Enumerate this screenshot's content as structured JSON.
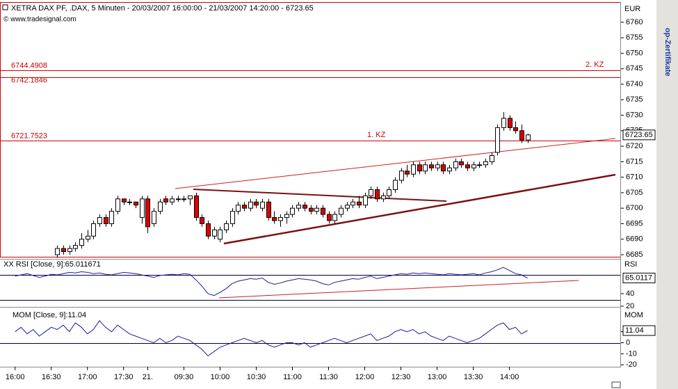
{
  "chart_data": [
    {
      "type": "candlestick",
      "title": "XETRA DAX PF, .DAX, 5 Minuten - 20/03/2007 16:00:00 - 21/03/2007 14:20:00 - 6723.65",
      "subtitle": "© www.tradesignal.com",
      "y_label": "EUR",
      "side_text": "op-Zertifikate",
      "x": [
        7,
        8,
        9,
        10,
        11,
        12,
        13,
        14,
        15,
        16,
        17,
        18,
        19,
        20,
        21,
        22,
        23,
        24,
        25,
        26,
        27,
        28,
        29,
        30,
        31,
        32,
        33,
        34,
        35,
        36,
        37,
        38,
        39,
        40,
        41,
        42,
        43,
        44,
        45,
        46,
        47,
        48,
        49,
        50,
        51,
        52,
        53,
        54,
        55,
        56,
        57,
        58,
        59,
        60,
        61,
        62,
        63,
        64,
        65,
        66,
        67,
        68,
        69,
        70,
        71,
        72,
        73,
        74,
        75,
        76,
        77,
        78,
        79,
        80,
        81,
        82,
        83,
        84,
        85
      ],
      "open": [
        6685,
        6687,
        6686,
        6687,
        6688,
        6690,
        6691,
        6695,
        6697,
        6695,
        6699,
        6703,
        6702,
        6702,
        6697,
        6703,
        6695,
        6699,
        6703,
        6702,
        6703,
        6703,
        6703,
        6704,
        6697,
        6695,
        6691,
        6690,
        6693,
        6695,
        6699,
        6701,
        6700,
        6702,
        6700,
        6702,
        6697,
        6696,
        6697,
        6698,
        6700,
        6701,
        6700,
        6699,
        6700,
        6698,
        6696,
        6698,
        6700,
        6701,
        6702,
        6701,
        6704,
        6706,
        6703,
        6704,
        6706,
        6709,
        6712,
        6711,
        6714,
        6712,
        6714,
        6713,
        6714,
        6712,
        6713,
        6715,
        6714,
        6713,
        6714,
        6714,
        6715,
        6718,
        6726,
        6729,
        6726,
        6725,
        6722
      ],
      "high": [
        6688,
        6688,
        6688,
        6689,
        6692,
        6693,
        6696,
        6698,
        6698,
        6700,
        6704,
        6703,
        6703,
        6702,
        6704,
        6704,
        6700,
        6703,
        6704,
        6704,
        6704,
        6704,
        6704,
        6705,
        6698,
        6696,
        6694,
        6694,
        6696,
        6700,
        6702,
        6702,
        6703,
        6703,
        6703,
        6703,
        6699,
        6698,
        6699,
        6701,
        6702,
        6702,
        6701,
        6701,
        6701,
        6699,
        6699,
        6701,
        6702,
        6703,
        6704,
        6705,
        6707,
        6707,
        6705,
        6707,
        6710,
        6713,
        6714,
        6715,
        6715,
        6715,
        6715,
        6715,
        6715,
        6714,
        6716,
        6716,
        6715,
        6715,
        6715,
        6716,
        6718,
        6727,
        6731,
        6730,
        6728,
        6727,
        6724
      ],
      "low": [
        6684,
        6685,
        6685,
        6686,
        6687,
        6689,
        6690,
        6694,
        6694,
        6694,
        6698,
        6701,
        6701,
        6700,
        6695,
        6692,
        6694,
        6698,
        6701,
        6701,
        6702,
        6702,
        6701,
        6696,
        6694,
        6690,
        6690,
        6689,
        6692,
        6694,
        6698,
        6699,
        6699,
        6700,
        6699,
        6696,
        6695,
        6694,
        6695,
        6697,
        6699,
        6699,
        6698,
        6698,
        6697,
        6695,
        6695,
        6697,
        6699,
        6700,
        6700,
        6700,
        6703,
        6702,
        6702,
        6703,
        6705,
        6708,
        6710,
        6710,
        6711,
        6711,
        6712,
        6712,
        6711,
        6711,
        6712,
        6713,
        6712,
        6712,
        6713,
        6713,
        6714,
        6717,
        6725,
        6725,
        6724,
        6721,
        6721
      ],
      "close": [
        6687,
        6686,
        6687,
        6688,
        6690,
        6691,
        6695,
        6697,
        6695,
        6699,
        6703,
        6702,
        6702,
        6701,
        6703,
        6694,
        6699,
        6702,
        6702,
        6703,
        6703,
        6703,
        6704,
        6697,
        6695,
        6691,
        6693,
        6693,
        6695,
        6699,
        6701,
        6700,
        6702,
        6701,
        6702,
        6697,
        6696,
        6697,
        6698,
        6700,
        6701,
        6700,
        6699,
        6700,
        6698,
        6696,
        6698,
        6700,
        6701,
        6702,
        6701,
        6704,
        6706,
        6703,
        6704,
        6706,
        6709,
        6712,
        6711,
        6714,
        6712,
        6714,
        6713,
        6714,
        6712,
        6713,
        6715,
        6714,
        6713,
        6714,
        6714,
        6715,
        6717,
        6726,
        6729,
        6726,
        6725,
        6722,
        6723.65
      ],
      "up_color": "#ffffff",
      "down_color": "#dd0000",
      "outline_color": "#000000",
      "ylim": [
        6684.1,
        6766.5
      ],
      "yticks": [
        6685,
        6690,
        6695,
        6700,
        6705,
        6710,
        6715,
        6720,
        6725,
        6730,
        6735,
        6740,
        6745,
        6750,
        6755,
        6760
      ],
      "xlim": [
        -2.5,
        100.5
      ],
      "xticks": [
        {
          "value": 0,
          "label": "16:00"
        },
        {
          "value": 6,
          "label": "16:30"
        },
        {
          "value": 12,
          "label": "17:00"
        },
        {
          "value": 18,
          "label": "17:30"
        },
        {
          "value": 22,
          "label": "21."
        },
        {
          "value": 28,
          "label": "09:30"
        },
        {
          "value": 34,
          "label": "10:00"
        },
        {
          "value": 40,
          "label": "10:30"
        },
        {
          "value": 46,
          "label": "11:00"
        },
        {
          "value": 52,
          "label": "11:30"
        },
        {
          "value": 58,
          "label": "12:00"
        },
        {
          "value": 64,
          "label": "12:30"
        },
        {
          "value": 70,
          "label": "13:00"
        },
        {
          "value": 76,
          "label": "13:30"
        },
        {
          "value": 82,
          "label": "14:00"
        }
      ],
      "levels": [
        6744.4908,
        6742.1846,
        6721.7523
      ],
      "level_color": "#cc0000",
      "annotations": [
        "1. KZ",
        "2. KZ"
      ]
    },
    {
      "type": "line",
      "title": "XX RSI [Close, 9]:65.011671",
      "y_label": "RSI",
      "color": "#1a1aa0",
      "x": [
        0,
        1,
        2,
        3,
        4,
        5,
        6,
        7,
        8,
        9,
        10,
        11,
        12,
        13,
        14,
        15,
        16,
        17,
        18,
        19,
        20,
        21,
        22,
        23,
        24,
        25,
        26,
        27,
        28,
        29,
        30,
        31,
        32,
        33,
        34,
        35,
        36,
        37,
        38,
        39,
        40,
        41,
        42,
        43,
        44,
        45,
        46,
        47,
        48,
        49,
        50,
        51,
        52,
        53,
        54,
        55,
        56,
        57,
        58,
        59,
        60,
        61,
        62,
        63,
        64,
        65,
        66,
        67,
        68,
        69,
        70,
        71,
        72,
        73,
        74,
        75,
        76,
        77,
        78,
        79,
        80,
        81,
        82,
        83,
        84,
        85
      ],
      "values": [
        68,
        70,
        72,
        69,
        66,
        68,
        71,
        70,
        72,
        74,
        73,
        75,
        74,
        72,
        73,
        71,
        70,
        72,
        74,
        73,
        72,
        70,
        68,
        66,
        69,
        70,
        71,
        70,
        72,
        71,
        62,
        52,
        40,
        37,
        42,
        48,
        56,
        60,
        62,
        64,
        63,
        65,
        58,
        55,
        57,
        60,
        62,
        64,
        63,
        62,
        60,
        56,
        54,
        58,
        60,
        62,
        64,
        63,
        66,
        68,
        64,
        66,
        68,
        70,
        72,
        71,
        73,
        72,
        73,
        72,
        71,
        70,
        72,
        71,
        70,
        71,
        72,
        70,
        73,
        75,
        78,
        82,
        77,
        72,
        70,
        65.011671
      ],
      "value_labels": [
        null,
        null,
        null,
        null,
        null,
        null,
        null,
        null,
        null,
        null,
        null,
        null,
        null,
        null,
        null,
        null,
        null,
        null,
        null,
        null,
        null,
        null,
        null,
        null,
        null,
        null,
        null,
        null,
        null,
        null,
        null,
        null,
        null,
        null,
        null,
        null,
        null,
        null,
        null,
        null,
        null,
        null,
        null,
        null,
        null,
        null,
        null,
        null,
        null,
        null,
        null,
        null,
        null,
        null,
        null,
        null,
        null,
        null,
        null,
        null,
        null,
        null,
        null,
        null,
        null,
        null,
        null,
        null,
        null,
        null,
        null,
        null,
        null,
        null,
        null,
        null,
        null,
        null,
        null,
        null,
        null,
        null,
        null,
        null,
        null,
        "65.0117"
      ],
      "ylim": [
        23.3,
        94.4
      ],
      "yticks": [
        40,
        20
      ],
      "levels": [
        70,
        30
      ]
    },
    {
      "type": "line",
      "title": "MOM [Close, 9]:11.04",
      "y_label": "MOM",
      "color": "#1a1aa0",
      "x": [
        0,
        1,
        2,
        3,
        4,
        5,
        6,
        7,
        8,
        9,
        10,
        11,
        12,
        13,
        14,
        15,
        16,
        17,
        18,
        19,
        20,
        21,
        22,
        23,
        24,
        25,
        26,
        27,
        28,
        29,
        30,
        31,
        32,
        33,
        34,
        35,
        36,
        37,
        38,
        39,
        40,
        41,
        42,
        43,
        44,
        45,
        46,
        47,
        48,
        49,
        50,
        51,
        52,
        53,
        54,
        55,
        56,
        57,
        58,
        59,
        60,
        61,
        62,
        63,
        64,
        65,
        66,
        67,
        68,
        69,
        70,
        71,
        72,
        73,
        74,
        75,
        76,
        77,
        78,
        79,
        80,
        81,
        82,
        83,
        84,
        85
      ],
      "values": [
        10,
        14,
        8,
        12,
        6,
        10,
        14,
        12,
        16,
        10,
        18,
        14,
        8,
        12,
        20,
        14,
        10,
        16,
        12,
        8,
        6,
        4,
        2,
        0,
        4,
        0,
        2,
        6,
        4,
        2,
        -2,
        -6,
        -12,
        -8,
        -4,
        -2,
        0,
        2,
        4,
        2,
        0,
        2,
        -2,
        -4,
        -2,
        0,
        0,
        -2,
        0,
        -4,
        -2,
        0,
        2,
        4,
        2,
        0,
        2,
        4,
        6,
        8,
        2,
        4,
        6,
        10,
        12,
        10,
        12,
        8,
        10,
        6,
        4,
        2,
        6,
        4,
        2,
        0,
        2,
        4,
        8,
        12,
        16,
        18,
        12,
        14,
        8,
        11.04
      ],
      "ylim": [
        -20.5,
        31.25
      ],
      "yticks": [
        10,
        0,
        -10,
        -20
      ],
      "levels": [
        0
      ]
    }
  ]
}
